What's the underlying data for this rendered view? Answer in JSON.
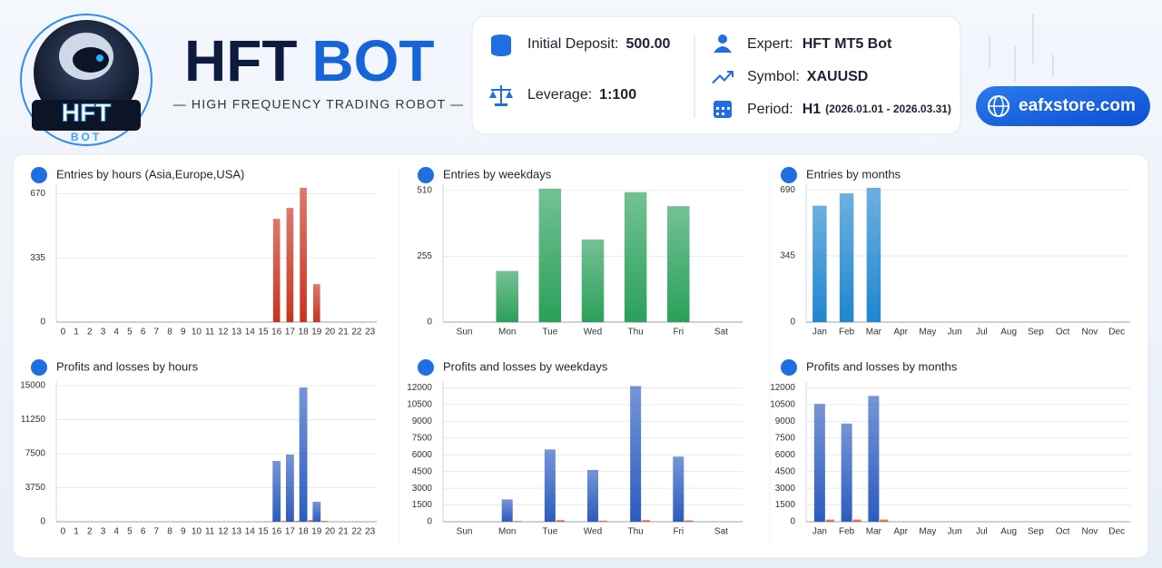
{
  "header": {
    "logo_title": "HFT",
    "logo_subtitle": "BOT",
    "brand_part1": "HFT",
    "brand_part2": "BOT",
    "tagline": "— HIGH FREQUENCY TRADING ROBOT —",
    "info": {
      "deposit_label": "Initial Deposit:",
      "deposit": "500.00",
      "leverage_label": "Leverage:",
      "leverage": "1:100",
      "expert_label": "Expert:",
      "expert": "HFT MT5 Bot",
      "symbol_label": "Symbol:",
      "symbol": "XAUUSD",
      "period_label": "Period:",
      "period": "H1",
      "period_range": "(2026.01.01 - 2026.03.31)"
    },
    "website": "eafxstore.com"
  },
  "chart_data": [
    {
      "type": "bar",
      "title": "Entries by hours (Asia,Europe,USA)",
      "categories": [
        "0",
        "1",
        "2",
        "3",
        "4",
        "5",
        "6",
        "7",
        "8",
        "9",
        "10",
        "11",
        "12",
        "13",
        "14",
        "15",
        "16",
        "17",
        "18",
        "19",
        "20",
        "21",
        "22",
        "23"
      ],
      "values": [
        0,
        0,
        0,
        0,
        0,
        0,
        0,
        0,
        0,
        0,
        0,
        0,
        0,
        0,
        0,
        0,
        538,
        595,
        700,
        198,
        0,
        0,
        0,
        0
      ],
      "color": "#c8341f",
      "ylim": [
        0,
        700
      ],
      "yticks": [
        0,
        335,
        670
      ],
      "grid": true
    },
    {
      "type": "bar",
      "title": "Entries by weekdays",
      "categories": [
        "Sun",
        "Mon",
        "Tue",
        "Wed",
        "Thu",
        "Fri",
        "Sat"
      ],
      "values": [
        0,
        198,
        517,
        320,
        503,
        449,
        0
      ],
      "color": "#2aa05a",
      "ylim": [
        0,
        520
      ],
      "yticks": [
        0,
        255,
        510
      ],
      "grid": true
    },
    {
      "type": "bar",
      "title": "Entries by months",
      "categories": [
        "Jan",
        "Feb",
        "Mar",
        "Apr",
        "May",
        "Jun",
        "Jul",
        "Aug",
        "Sep",
        "Oct",
        "Nov",
        "Dec"
      ],
      "values": [
        607,
        671,
        700,
        0,
        0,
        0,
        0,
        0,
        0,
        0,
        0,
        0
      ],
      "color": "#1f86d0",
      "ylim": [
        0,
        700
      ],
      "yticks": [
        0,
        345,
        690
      ],
      "grid": true
    },
    {
      "type": "grouped-bar",
      "title": "Profits and losses by hours",
      "categories": [
        "0",
        "1",
        "2",
        "3",
        "4",
        "5",
        "6",
        "7",
        "8",
        "9",
        "10",
        "11",
        "12",
        "13",
        "14",
        "15",
        "16",
        "17",
        "18",
        "19",
        "20",
        "21",
        "22",
        "23"
      ],
      "series": [
        {
          "color": "#2c5cc0",
          "values": [
            0,
            0,
            0,
            0,
            0,
            0,
            0,
            0,
            0,
            0,
            0,
            0,
            0,
            0,
            0,
            0,
            6700,
            7400,
            14800,
            2200,
            0,
            0,
            0,
            0
          ]
        },
        {
          "color": "#e2542c",
          "values": [
            0,
            0,
            0,
            0,
            0,
            0,
            0,
            0,
            0,
            0,
            0,
            0,
            0,
            0,
            0,
            0,
            100,
            100,
            200,
            100,
            0,
            0,
            0,
            0
          ]
        }
      ],
      "ylim": [
        0,
        15000
      ],
      "yticks": [
        0,
        3750,
        7500,
        11250,
        15000
      ],
      "grid": true
    },
    {
      "type": "grouped-bar",
      "title": "Profits and losses by weekdays",
      "categories": [
        "Sun",
        "Mon",
        "Tue",
        "Wed",
        "Thu",
        "Fri",
        "Sat"
      ],
      "series": [
        {
          "color": "#2c5cc0",
          "values": [
            0,
            2000,
            6480,
            4640,
            12160,
            5840,
            0
          ]
        },
        {
          "color": "#e2542c",
          "values": [
            0,
            60,
            150,
            100,
            150,
            120,
            0
          ]
        }
      ],
      "ylim": [
        0,
        12200
      ],
      "yticks": [
        0,
        1500,
        3000,
        4500,
        6000,
        7500,
        9000,
        10500,
        12000
      ],
      "grid": true
    },
    {
      "type": "grouped-bar",
      "title": "Profits and losses by months",
      "categories": [
        "Jan",
        "Feb",
        "Mar",
        "Apr",
        "May",
        "Jun",
        "Jul",
        "Aug",
        "Sep",
        "Oct",
        "Nov",
        "Dec"
      ],
      "series": [
        {
          "color": "#2c5cc0",
          "values": [
            10560,
            8800,
            11280,
            0,
            0,
            0,
            0,
            0,
            0,
            0,
            0,
            0
          ]
        },
        {
          "color": "#e2542c",
          "values": [
            200,
            200,
            200,
            0,
            0,
            0,
            0,
            0,
            0,
            0,
            0,
            0
          ]
        }
      ],
      "ylim": [
        0,
        12200
      ],
      "yticks": [
        0,
        1500,
        3000,
        4500,
        6000,
        7500,
        9000,
        10500,
        12000
      ],
      "grid": true
    }
  ]
}
